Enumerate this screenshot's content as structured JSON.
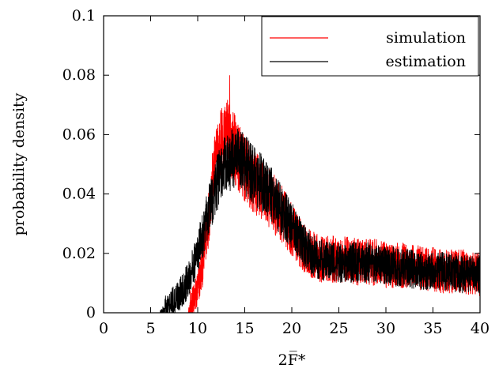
{
  "chart_data": {
    "type": "line",
    "title": "",
    "xlabel": "2F̅*",
    "ylabel": "probability density",
    "xlim": [
      0,
      40
    ],
    "ylim": [
      0,
      0.1
    ],
    "xticks": [
      0,
      5,
      10,
      15,
      20,
      25,
      30,
      35,
      40
    ],
    "xtick_labels": [
      "0",
      "5",
      "10",
      "15",
      "20",
      "25",
      "30",
      "35",
      "40"
    ],
    "yticks": [
      0,
      0.02,
      0.04,
      0.06,
      0.08,
      0.1
    ],
    "ytick_labels": [
      "0",
      "0.02",
      "0.04",
      "0.06",
      "0.08",
      "0.1"
    ],
    "grid": false,
    "legend": "top-right",
    "series": [
      {
        "name": "simulation",
        "color": "#ff0000",
        "x": [
          9.0,
          9.5,
          10,
          10.5,
          11,
          11.5,
          12,
          12.5,
          13,
          13.5,
          14,
          14.5,
          15,
          15.5,
          16,
          17,
          18,
          19,
          20,
          21,
          22,
          23,
          24,
          25,
          26,
          27,
          28,
          29,
          30,
          32,
          34,
          36,
          38,
          40
        ],
        "values": [
          0.0,
          0.003,
          0.008,
          0.016,
          0.028,
          0.042,
          0.052,
          0.058,
          0.06,
          0.058,
          0.055,
          0.051,
          0.048,
          0.046,
          0.044,
          0.041,
          0.037,
          0.033,
          0.028,
          0.023,
          0.02,
          0.018,
          0.018,
          0.018,
          0.018,
          0.017,
          0.017,
          0.017,
          0.016,
          0.016,
          0.015,
          0.014,
          0.014,
          0.013
        ],
        "peak": {
          "x": 13.4,
          "y": 0.08
        }
      },
      {
        "name": "estimation",
        "color": "#000000",
        "x": [
          6.0,
          7,
          8,
          9,
          10,
          10.5,
          11,
          11.5,
          12,
          12.5,
          13,
          13.5,
          14,
          14.5,
          15,
          15.5,
          16,
          17,
          18,
          19,
          20,
          21,
          22,
          23,
          24,
          25,
          26,
          27,
          28,
          29,
          30,
          32,
          34,
          36,
          38,
          40
        ],
        "values": [
          0.0,
          0.002,
          0.006,
          0.011,
          0.02,
          0.026,
          0.032,
          0.038,
          0.043,
          0.047,
          0.05,
          0.051,
          0.052,
          0.051,
          0.05,
          0.048,
          0.046,
          0.043,
          0.039,
          0.034,
          0.029,
          0.024,
          0.02,
          0.018,
          0.017,
          0.017,
          0.017,
          0.017,
          0.017,
          0.016,
          0.016,
          0.015,
          0.014,
          0.014,
          0.013,
          0.013
        ]
      }
    ]
  }
}
